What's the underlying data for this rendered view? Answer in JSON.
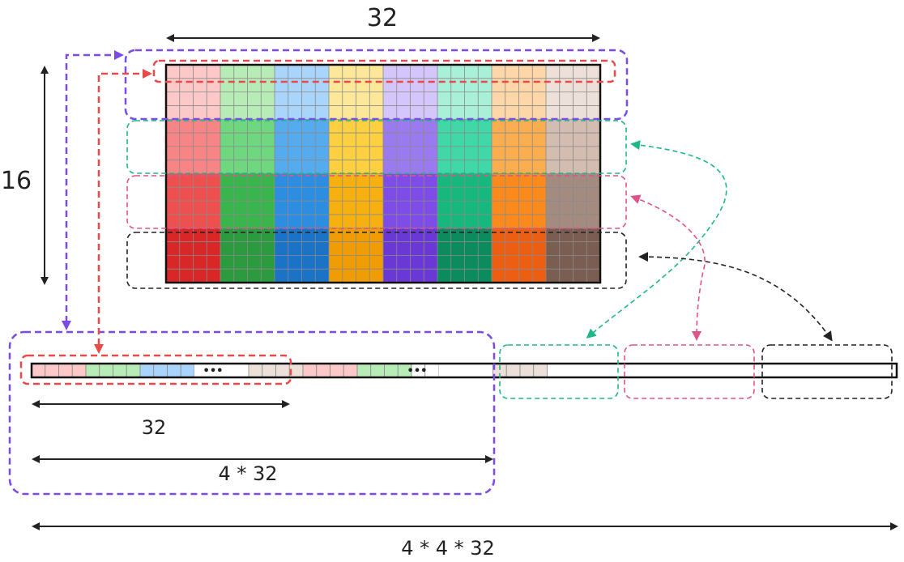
{
  "labels": {
    "grid_width": "32",
    "grid_height": "16",
    "segment": "32",
    "row_block": "4 * 32",
    "total": "4 * 4 * 32",
    "ellipsis": "•••"
  },
  "grid": {
    "rows": 16,
    "cols": 32,
    "row_blocks": 4,
    "col_blocks": 8,
    "block_colors": [
      [
        "#fcc8c8",
        "#b7ecb7",
        "#a9d4fb",
        "#fde89a",
        "#d4c6fb",
        "#a9f0d9",
        "#fed7a8",
        "#ece0d8"
      ],
      [
        "#f88585",
        "#6fd77f",
        "#56abee",
        "#fcd040",
        "#9b79ee",
        "#3fd8a6",
        "#fbae4f",
        "#d3bcb0"
      ],
      [
        "#ee5050",
        "#3ab54e",
        "#2d8ee1",
        "#f6b111",
        "#7e4ce6",
        "#16b87e",
        "#fb8a1d",
        "#a48b80"
      ],
      [
        "#d92727",
        "#2c9a3f",
        "#1a73c6",
        "#f09d05",
        "#6a38d4",
        "#0b8b5e",
        "#ec5f12",
        "#7a5e51"
      ]
    ]
  },
  "strip": {
    "visible_cells": [
      "#fcc8c8",
      "#fcc8c8",
      "#fcc8c8",
      "#fcc8c8",
      "#b7ecb7",
      "#b7ecb7",
      "#b7ecb7",
      "#b7ecb7",
      "#a9d4fb",
      "#a9d4fb",
      "#a9d4fb",
      "#a9d4fb",
      "ellipsis",
      "ellipsis",
      "ellipsis",
      "ellipsis",
      "#ece0d8",
      "#ece0d8",
      "#ece0d8",
      "#ece0d8",
      "#fcc8c8",
      "#fcc8c8",
      "#fcc8c8",
      "#fcc8c8",
      "#b7ecb7",
      "#b7ecb7",
      "#b7ecb7",
      "#b7ecb7",
      "#ffffff",
      "#ffffff",
      "ellipsis",
      "ellipsis",
      "ellipsis",
      "ellipsis",
      "#ece0d8",
      "#ece0d8",
      "#ece0d8",
      "#ece0d8"
    ]
  },
  "colors": {
    "purple": "#7b4be8",
    "red": "#e84a4a",
    "green": "#1db886",
    "pink": "#e0538a",
    "black": "#222222",
    "grid_line": "#8a8a8a"
  }
}
